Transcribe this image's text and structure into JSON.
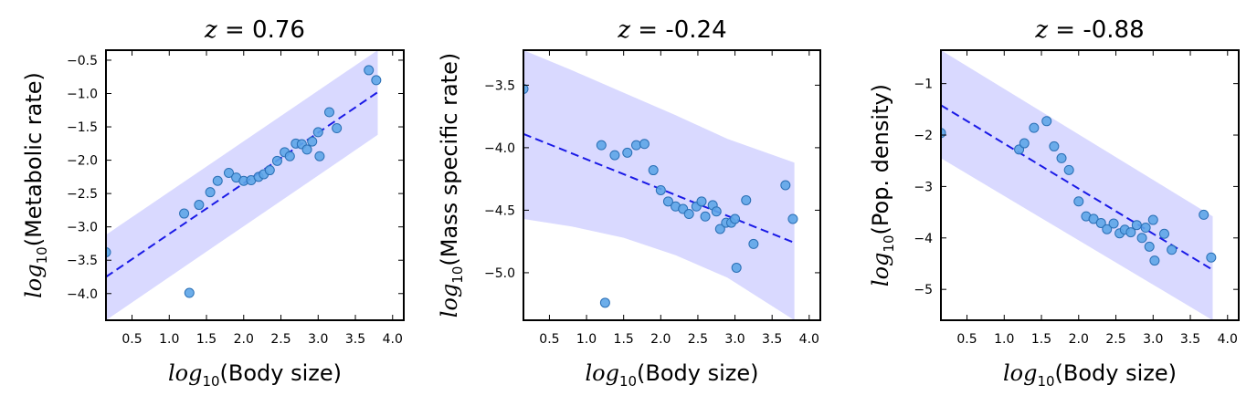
{
  "colors": {
    "band": "#d9d9ff",
    "fit_line": "#1a1ae6",
    "point_fill": "#5da5e8",
    "point_stroke": "#2a6fb5",
    "frame": "#000000"
  },
  "chart_data": [
    {
      "type": "scatter",
      "title_var": "z",
      "title_value": " = 0.76",
      "xlabel_log": "log",
      "xlabel_sub": "10",
      "xlabel_text": "(Body size)",
      "ylabel_log": "log",
      "ylabel_sub": "10",
      "ylabel_text": "(Metabolic rate)",
      "xlim": [
        0.15,
        4.15
      ],
      "ylim": [
        -4.4,
        -0.35
      ],
      "xticks": [
        0.5,
        1.0,
        1.5,
        2.0,
        2.5,
        3.0,
        3.5,
        4.0
      ],
      "xtick_labels": [
        "0.5",
        "1.0",
        "1.5",
        "2.0",
        "2.5",
        "3.0",
        "3.5",
        "4.0"
      ],
      "yticks": [
        -4.0,
        -3.5,
        -3.0,
        -2.5,
        -2.0,
        -1.5,
        -1.0,
        -0.5
      ],
      "ytick_labels": [
        "−4.0",
        "−3.5",
        "−3.0",
        "−2.5",
        "−2.0",
        "−1.5",
        "−1.0",
        "−0.5"
      ],
      "fit": {
        "x": [
          0.15,
          3.8
        ],
        "y": [
          -3.75,
          -0.98
        ]
      },
      "band": {
        "x": [
          0.15,
          3.8
        ],
        "upper": [
          -3.12,
          -0.35
        ],
        "lower": [
          -4.4,
          -1.62
        ]
      },
      "points": {
        "x": [
          0.15,
          1.2,
          1.27,
          1.4,
          1.55,
          1.65,
          1.8,
          1.9,
          2.0,
          2.1,
          2.2,
          2.27,
          2.35,
          2.45,
          2.55,
          2.62,
          2.7,
          2.78,
          2.85,
          2.92,
          3.0,
          3.02,
          3.15,
          3.25,
          3.68,
          3.78
        ],
        "y": [
          -3.38,
          -2.8,
          -3.99,
          -2.67,
          -2.48,
          -2.31,
          -2.19,
          -2.26,
          -2.31,
          -2.3,
          -2.25,
          -2.21,
          -2.15,
          -2.01,
          -1.88,
          -1.94,
          -1.75,
          -1.76,
          -1.84,
          -1.72,
          -1.58,
          -1.94,
          -1.28,
          -1.52,
          -0.65,
          -0.8
        ]
      }
    },
    {
      "type": "scatter",
      "title_var": "z",
      "title_value": " = -0.24",
      "xlabel_log": "log",
      "xlabel_sub": "10",
      "xlabel_text": "(Body size)",
      "ylabel_log": "log",
      "ylabel_sub": "10",
      "ylabel_text": "(Mass specific rate)",
      "xlim": [
        0.15,
        4.15
      ],
      "ylim": [
        -5.38,
        -3.22
      ],
      "xticks": [
        0.5,
        1.0,
        1.5,
        2.0,
        2.5,
        3.0,
        3.5,
        4.0
      ],
      "xtick_labels": [
        "0.5",
        "1.0",
        "1.5",
        "2.0",
        "2.5",
        "3.0",
        "3.5",
        "4.0"
      ],
      "yticks": [
        -5.0,
        -4.5,
        -4.0,
        -3.5
      ],
      "ytick_labels": [
        "−5.0",
        "−4.5",
        "−4.0",
        "−3.5"
      ],
      "fit": {
        "x": [
          0.15,
          3.8
        ],
        "y": [
          -3.89,
          -4.76
        ]
      },
      "band": {
        "x": [
          0.15,
          0.8,
          1.5,
          2.2,
          2.9,
          3.8
        ],
        "upper": [
          -3.22,
          -3.38,
          -3.56,
          -3.74,
          -3.93,
          -4.12
        ],
        "lower": [
          -4.57,
          -4.63,
          -4.72,
          -4.86,
          -5.04,
          -5.38
        ]
      },
      "points": {
        "x": [
          0.15,
          1.2,
          1.25,
          1.38,
          1.55,
          1.67,
          1.78,
          1.9,
          2.0,
          2.1,
          2.2,
          2.3,
          2.38,
          2.48,
          2.55,
          2.6,
          2.7,
          2.75,
          2.8,
          2.88,
          2.95,
          3.0,
          3.02,
          3.15,
          3.25,
          3.68,
          3.78
        ],
        "y": [
          -3.53,
          -3.98,
          -5.24,
          -4.06,
          -4.04,
          -3.98,
          -3.97,
          -4.18,
          -4.34,
          -4.43,
          -4.47,
          -4.49,
          -4.53,
          -4.47,
          -4.43,
          -4.55,
          -4.46,
          -4.51,
          -4.65,
          -4.6,
          -4.6,
          -4.57,
          -4.96,
          -4.42,
          -4.77,
          -4.3,
          -4.57
        ]
      }
    },
    {
      "type": "scatter",
      "title_var": "z",
      "title_value": " = -0.88",
      "xlabel_log": "log",
      "xlabel_sub": "10",
      "xlabel_text": "(Body size)",
      "ylabel_log": "log",
      "ylabel_sub": "10",
      "ylabel_text": "(Pop. density)",
      "xlim": [
        0.15,
        4.15
      ],
      "ylim": [
        -5.6,
        -0.35
      ],
      "xticks": [
        0.5,
        1.0,
        1.5,
        2.0,
        2.5,
        3.0,
        3.5,
        4.0
      ],
      "xtick_labels": [
        "0.5",
        "1.0",
        "1.5",
        "2.0",
        "2.5",
        "3.0",
        "3.5",
        "4.0"
      ],
      "yticks": [
        -5,
        -4,
        -3,
        -2,
        -1
      ],
      "ytick_labels": [
        "−5",
        "−4",
        "−3",
        "−2",
        "−1"
      ],
      "fit": {
        "x": [
          0.15,
          3.8
        ],
        "y": [
          -1.42,
          -4.62
        ]
      },
      "band": {
        "x": [
          0.15,
          3.8
        ],
        "upper": [
          -0.35,
          -3.58
        ],
        "lower": [
          -2.45,
          -5.6
        ]
      },
      "points": {
        "x": [
          0.15,
          1.2,
          1.27,
          1.4,
          1.57,
          1.67,
          1.77,
          1.87,
          2.0,
          2.1,
          2.2,
          2.3,
          2.38,
          2.47,
          2.55,
          2.62,
          2.7,
          2.78,
          2.85,
          2.9,
          2.95,
          3.0,
          3.02,
          3.15,
          3.25,
          3.68,
          3.78
        ],
        "y": [
          -1.96,
          -2.28,
          -2.16,
          -1.86,
          -1.73,
          -2.22,
          -2.45,
          -2.68,
          -3.29,
          -3.58,
          -3.63,
          -3.71,
          -3.83,
          -3.72,
          -3.91,
          -3.84,
          -3.89,
          -3.75,
          -4.0,
          -3.8,
          -4.17,
          -3.65,
          -4.44,
          -3.92,
          -4.23,
          -3.55,
          -4.38
        ]
      }
    }
  ]
}
